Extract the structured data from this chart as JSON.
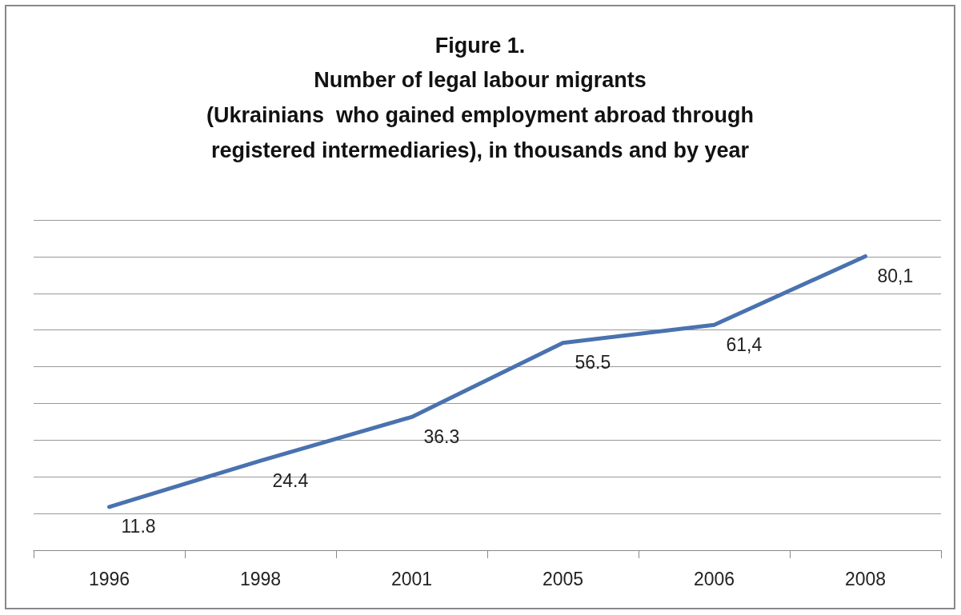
{
  "chart_data": {
    "type": "line",
    "title": "Figure 1.",
    "subtitle": "Number of legal labour migrants\n(Ukrainians  who gained employment abroad through\nregistered intermediaries), in thousands and by year",
    "categories": [
      "1996",
      "1998",
      "2001",
      "2005",
      "2006",
      "2008"
    ],
    "series": [
      {
        "color": "#4a72b0",
        "values": [
          11.8,
          24.4,
          36.3,
          56.5,
          61.4,
          80.1
        ],
        "value_labels": [
          "11.8",
          "24.4",
          "36.3",
          "56.5",
          "61,4",
          "80,1"
        ]
      }
    ],
    "ylim": [
      0,
      90
    ],
    "yticks": [
      {
        "value": 0,
        "label": null
      },
      {
        "value": 10,
        "label": null
      },
      {
        "value": 20,
        "label": null
      },
      {
        "value": 30,
        "label": null
      },
      {
        "value": 40,
        "label": null
      },
      {
        "value": 50,
        "label": null
      },
      {
        "value": 60,
        "label": null
      },
      {
        "value": 70,
        "label": null
      },
      {
        "value": 80,
        "label": null
      },
      {
        "value": 90,
        "label": null
      }
    ],
    "tick_labels": "x",
    "grid": "y",
    "marker": "none",
    "line_style": "solid"
  }
}
